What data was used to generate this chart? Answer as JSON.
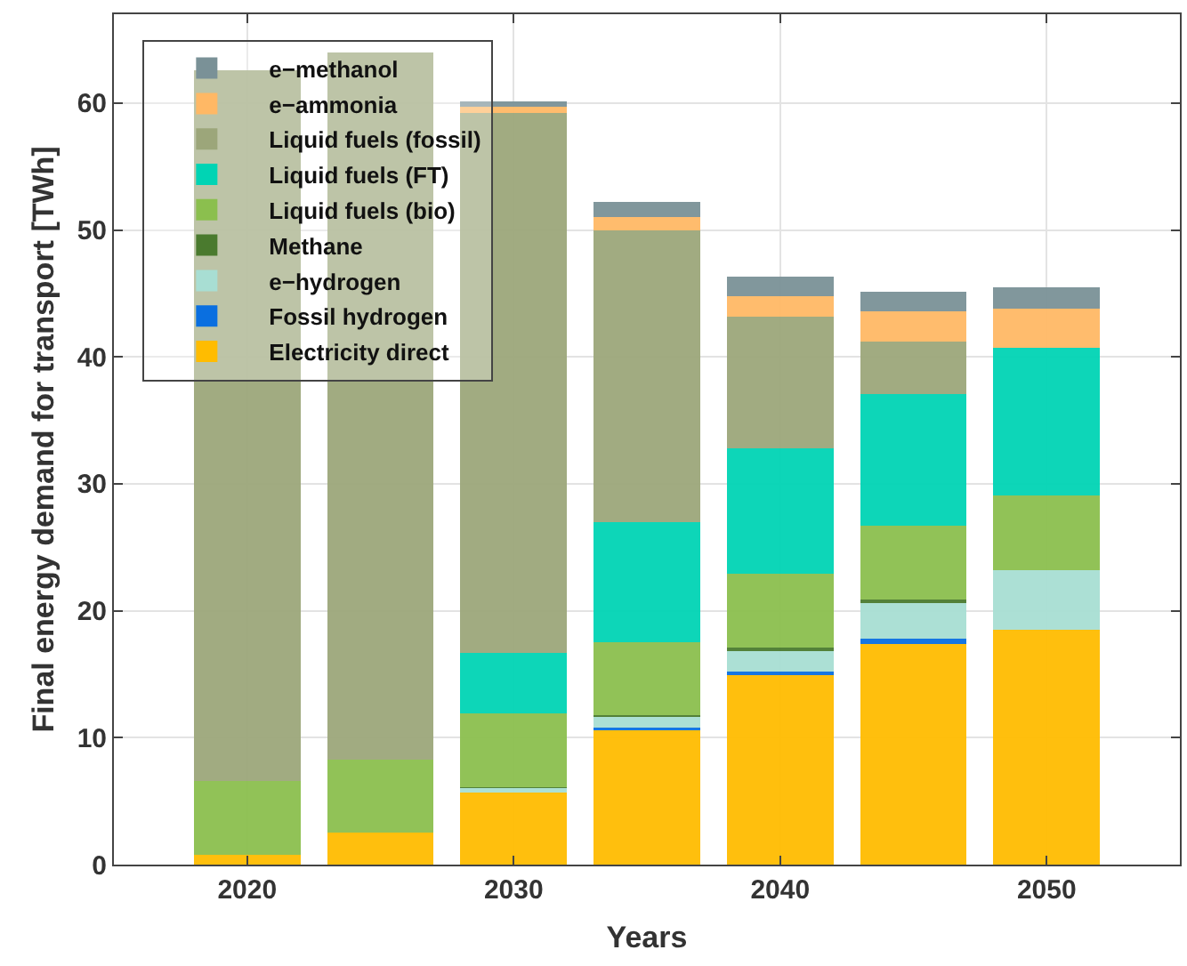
{
  "chart_data": {
    "type": "bar",
    "stacked": true,
    "xlabel": "Years",
    "ylabel": "Final energy demand for transport [TWh]",
    "x": [
      2020,
      2025,
      2030,
      2035,
      2040,
      2045,
      2050
    ],
    "xlim": [
      2015,
      2055
    ],
    "xticks": [
      2020,
      2030,
      2040,
      2050
    ],
    "ylim": [
      0,
      67
    ],
    "yticks": [
      0,
      10,
      20,
      30,
      40,
      50,
      60
    ],
    "grid": true,
    "legend": "top left",
    "series": [
      {
        "name": "Electricity direct",
        "color": "#ffbc00",
        "values": [
          0.8,
          2.5,
          5.7,
          10.6,
          14.9,
          17.4,
          18.5
        ]
      },
      {
        "name": "Fossil hydrogen",
        "color": "#0a6fe0",
        "values": [
          0,
          0,
          0,
          0.2,
          0.3,
          0.4,
          0
        ]
      },
      {
        "name": "e−hydrogen",
        "color": "#a8ded3",
        "values": [
          0,
          0,
          0.3,
          0.8,
          1.6,
          2.8,
          4.7
        ]
      },
      {
        "name": "Methane",
        "color": "#4a7a2e",
        "values": [
          0,
          0,
          0.1,
          0.2,
          0.3,
          0.3,
          0
        ]
      },
      {
        "name": "Liquid fuels (bio)",
        "color": "#8bbf4e",
        "values": [
          5.8,
          5.8,
          5.8,
          5.7,
          5.8,
          5.8,
          5.9
        ]
      },
      {
        "name": "Liquid fuels (FT)",
        "color": "#00d4b4",
        "values": [
          0,
          0,
          4.8,
          9.5,
          9.9,
          10.4,
          11.6
        ]
      },
      {
        "name": "Liquid fuels (fossil)",
        "color": "#9ca67a",
        "values": [
          56.0,
          55.7,
          42.5,
          23.0,
          10.4,
          4.1,
          0
        ]
      },
      {
        "name": "e−ammonia",
        "color": "#ffb865",
        "values": [
          0,
          0,
          0.5,
          1.0,
          1.6,
          2.4,
          3.1
        ]
      },
      {
        "name": "e−methanol",
        "color": "#7a9197",
        "values": [
          0,
          0,
          0.4,
          1.2,
          1.5,
          1.5,
          1.7
        ]
      }
    ]
  }
}
